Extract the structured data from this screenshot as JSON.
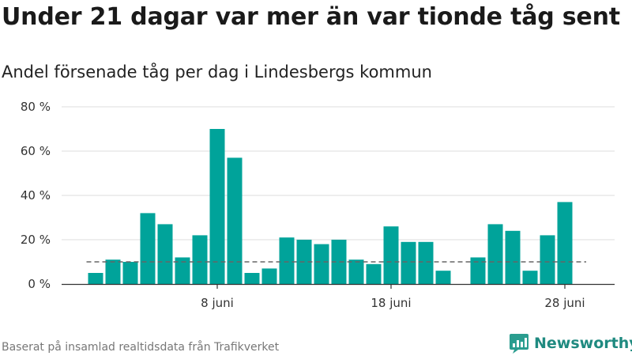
{
  "title": "Under 21 dagar var mer än var tionde tåg sent",
  "subtitle": "Andel försenade tåg per dag i Lindesbergs kommun",
  "footer": "Baserat på insamlad realtidsdata från Trafikverket",
  "brand": "Newsworthy",
  "colors": {
    "bar": "#00a39a",
    "grid": "#dddddd",
    "reference": "#666666",
    "brand": "#1f8a80"
  },
  "chart_data": {
    "type": "bar",
    "title": "Under 21 dagar var mer än var tionde tåg sent",
    "subtitle": "Andel försenade tåg per dag i Lindesbergs kommun",
    "xlabel": "",
    "ylabel": "",
    "x_unit": "day of June",
    "x": [
      1,
      2,
      3,
      4,
      5,
      6,
      7,
      8,
      9,
      10,
      11,
      12,
      13,
      14,
      15,
      16,
      17,
      18,
      19,
      20,
      21,
      22,
      23,
      24,
      25,
      26,
      27,
      28,
      29
    ],
    "values": [
      5,
      11,
      10,
      32,
      27,
      12,
      22,
      70,
      57,
      5,
      7,
      21,
      20,
      18,
      20,
      11,
      9,
      26,
      19,
      19,
      6,
      null,
      12,
      27,
      24,
      6,
      22,
      37,
      null
    ],
    "ylim": [
      0,
      80
    ],
    "yticks": [
      0,
      20,
      40,
      60,
      80
    ],
    "ytick_labels": [
      "0 %",
      "20 %",
      "40 %",
      "60 %",
      "80 %"
    ],
    "xticks": [
      8,
      18,
      28
    ],
    "xtick_labels": [
      "8 juni",
      "18 juni",
      "28 juni"
    ],
    "reference_line": {
      "value": 10,
      "style": "dashed"
    },
    "grid": true
  }
}
